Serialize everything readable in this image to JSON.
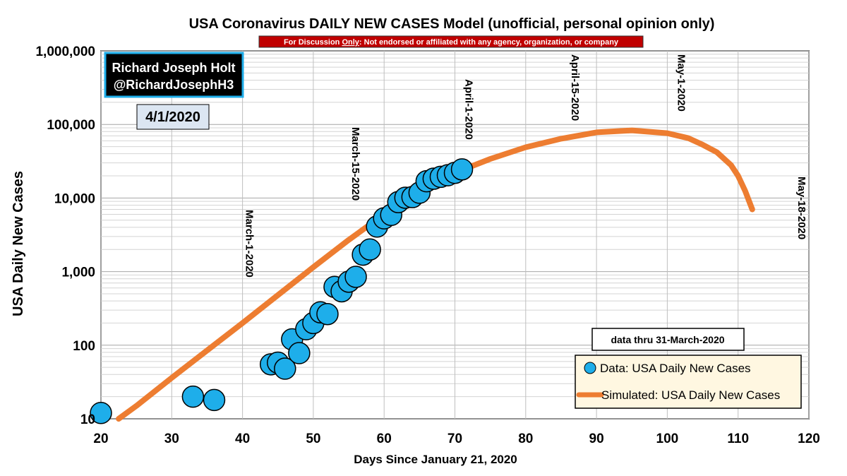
{
  "chart_data": {
    "type": "scatter",
    "title": "USA Coronavirus DAILY NEW CASES Model (unofficial, personal opinion only)",
    "disclaimer": {
      "prefix": "For Discussion ",
      "underlined": "Only",
      "suffix": ": Not endorsed or affiliated with any agency, organization, or company"
    },
    "author_box": {
      "line1": "Richard Joseph Holt",
      "line2": "@RichardJosephH3"
    },
    "date_box": "4/1/2020",
    "data_note": "data thru 31-March-2020",
    "xlabel": "Days Since January 21, 2020",
    "ylabel": "USA Daily New Cases",
    "xlim": [
      20,
      120
    ],
    "ylim": [
      10,
      1000000
    ],
    "yscale": "log",
    "grid": true,
    "x_ticks": [
      "20",
      "30",
      "40",
      "50",
      "60",
      "70",
      "80",
      "90",
      "100",
      "110",
      "120"
    ],
    "y_ticks": [
      {
        "value": 10,
        "label": "10"
      },
      {
        "value": 100,
        "label": "100"
      },
      {
        "value": 1000,
        "label": "1,000"
      },
      {
        "value": 10000,
        "label": "10,000"
      },
      {
        "value": 100000,
        "label": "100,000"
      },
      {
        "value": 1000000,
        "label": "1,000,000"
      }
    ],
    "date_markers": [
      {
        "x": 40,
        "label": "March-1-2020"
      },
      {
        "x": 55,
        "label": "March-15-2020"
      },
      {
        "x": 71,
        "label": "April-1-2020"
      },
      {
        "x": 86,
        "label": "April-15-2020"
      },
      {
        "x": 101,
        "label": "May-1-2020"
      },
      {
        "x": 118,
        "label": "May-18-2020"
      }
    ],
    "legend_position": "bottom-right",
    "series": [
      {
        "name": "Data: USA Daily New Cases",
        "kind": "scatter",
        "color": "#1eaeea",
        "points": [
          [
            20,
            12
          ],
          [
            33,
            20
          ],
          [
            36,
            18
          ],
          [
            44,
            55
          ],
          [
            45,
            58
          ],
          [
            46,
            48
          ],
          [
            47,
            120
          ],
          [
            48,
            78
          ],
          [
            49,
            165
          ],
          [
            50,
            200
          ],
          [
            51,
            280
          ],
          [
            52,
            265
          ],
          [
            53,
            620
          ],
          [
            54,
            540
          ],
          [
            55,
            730
          ],
          [
            56,
            850
          ],
          [
            57,
            1700
          ],
          [
            58,
            2000
          ],
          [
            59,
            4100
          ],
          [
            60,
            5300
          ],
          [
            61,
            5900
          ],
          [
            62,
            8800
          ],
          [
            63,
            10100
          ],
          [
            64,
            10300
          ],
          [
            65,
            11800
          ],
          [
            66,
            16900
          ],
          [
            67,
            18300
          ],
          [
            68,
            19400
          ],
          [
            69,
            20400
          ],
          [
            70,
            22000
          ],
          [
            71,
            24500
          ]
        ]
      },
      {
        "name": "Simulated: USA Daily New Cases",
        "kind": "line",
        "color": "#ed7d31",
        "points": [
          [
            22.5,
            10
          ],
          [
            25,
            15
          ],
          [
            30,
            36
          ],
          [
            35,
            85
          ],
          [
            40,
            200
          ],
          [
            45,
            480
          ],
          [
            50,
            1150
          ],
          [
            55,
            2700
          ],
          [
            60,
            6000
          ],
          [
            65,
            12500
          ],
          [
            70,
            22000
          ],
          [
            75,
            34000
          ],
          [
            80,
            49000
          ],
          [
            85,
            64000
          ],
          [
            90,
            78000
          ],
          [
            95,
            83000
          ],
          [
            100,
            76000
          ],
          [
            103,
            65000
          ],
          [
            105,
            53000
          ],
          [
            107,
            42000
          ],
          [
            109,
            28000
          ],
          [
            110,
            20000
          ],
          [
            111,
            12500
          ],
          [
            112,
            7000
          ]
        ]
      }
    ]
  }
}
